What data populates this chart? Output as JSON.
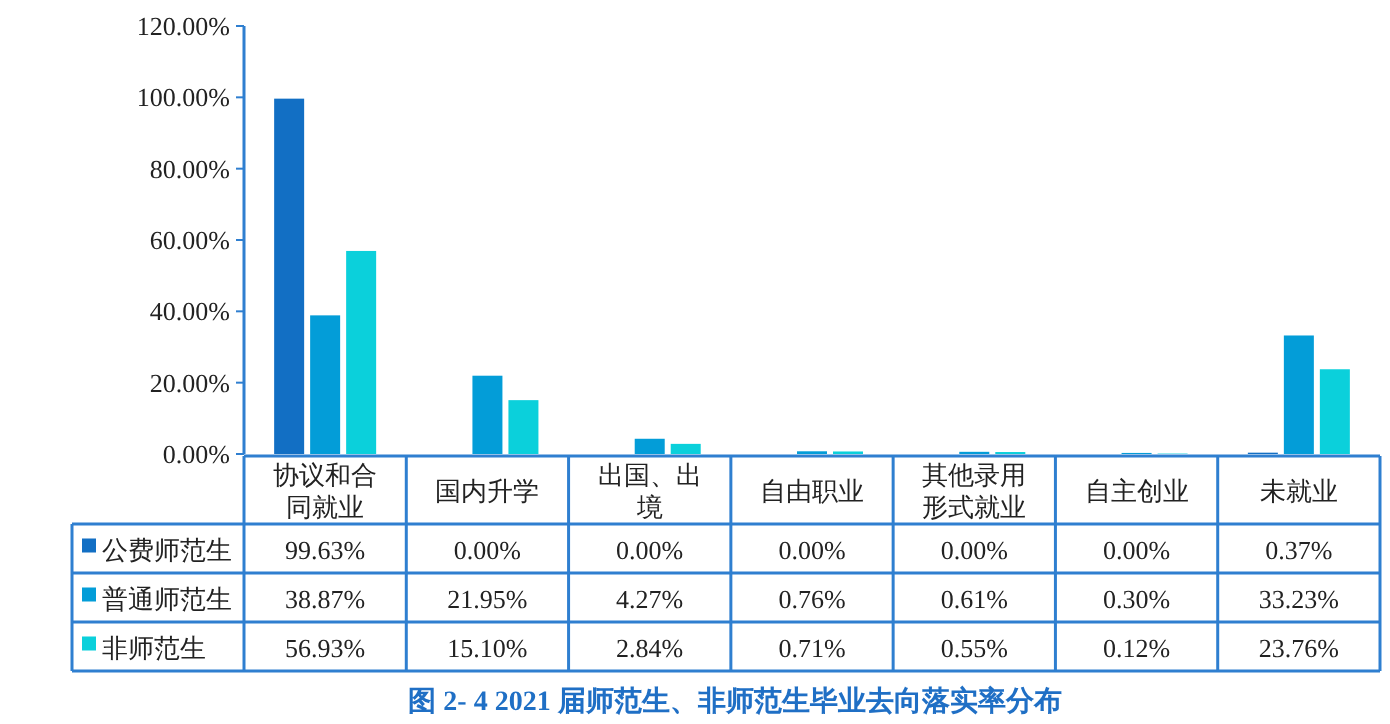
{
  "chart_data": {
    "type": "bar",
    "title": "图 2- 4  2021 届师范生、非师范生毕业去向落实率分布",
    "categories": [
      "协议和合同就业",
      "国内升学",
      "出国、出境",
      "自由职业",
      "其他录用形式就业",
      "自主创业",
      "未就业"
    ],
    "series": [
      {
        "name": "公费师范生",
        "color": "#126fc4",
        "values": [
          99.63,
          0.0,
          0.0,
          0.0,
          0.0,
          0.0,
          0.37
        ],
        "value_labels": [
          "99.63%",
          "0.00%",
          "0.00%",
          "0.00%",
          "0.00%",
          "0.00%",
          "0.37%"
        ]
      },
      {
        "name": "普通师范生",
        "color": "#039dd8",
        "values": [
          38.87,
          21.95,
          4.27,
          0.76,
          0.61,
          0.3,
          33.23
        ],
        "value_labels": [
          "38.87%",
          "21.95%",
          "4.27%",
          "0.76%",
          "0.61%",
          "0.30%",
          "33.23%"
        ]
      },
      {
        "name": "非师范生",
        "color": "#0bd0db",
        "values": [
          56.93,
          15.1,
          2.84,
          0.71,
          0.55,
          0.12,
          23.76
        ],
        "value_labels": [
          "56.93%",
          "15.10%",
          "2.84%",
          "0.71%",
          "0.55%",
          "0.12%",
          "23.76%"
        ]
      }
    ],
    "ylim": [
      0,
      120
    ],
    "yticks": [
      {
        "value": 0,
        "label": "0.00%"
      },
      {
        "value": 20,
        "label": "20.00%"
      },
      {
        "value": 40,
        "label": "40.00%"
      },
      {
        "value": 60,
        "label": "60.00%"
      },
      {
        "value": 80,
        "label": "80.00%"
      },
      {
        "value": 100,
        "label": "100.00%"
      },
      {
        "value": 120,
        "label": "120.00%"
      }
    ],
    "grid": false,
    "legend": "bottom"
  }
}
